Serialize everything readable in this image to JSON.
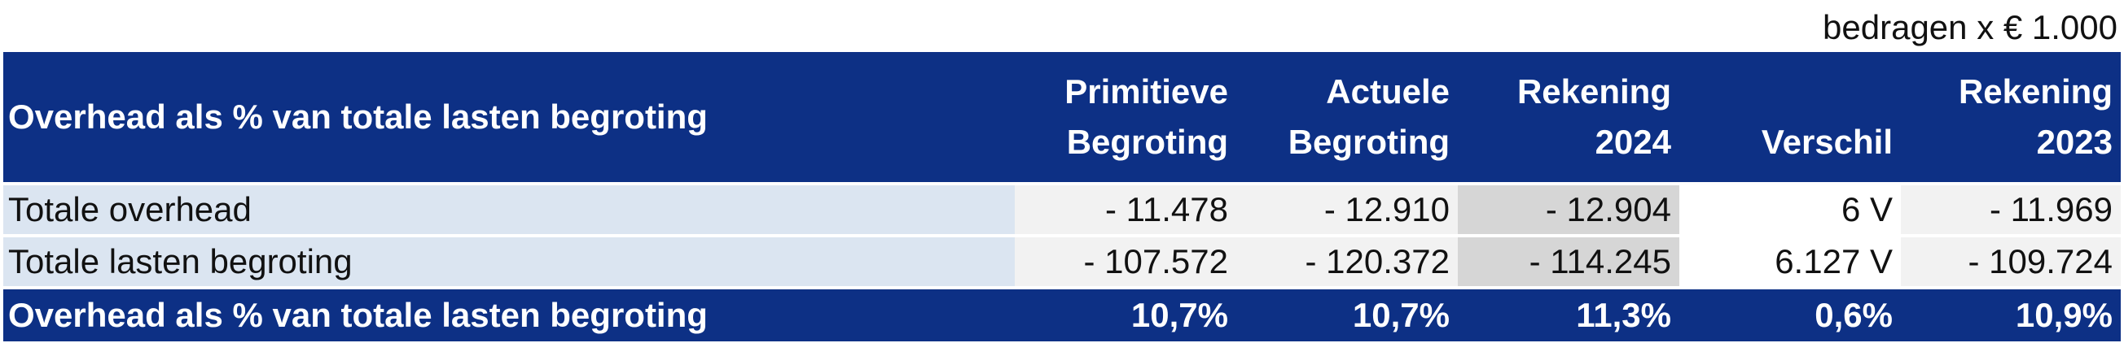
{
  "unit_note": "bedragen x € 1.000",
  "header": {
    "title": "Overhead als % van totale lasten begroting",
    "columns": [
      {
        "line1": "Primitieve",
        "line2": "Begroting"
      },
      {
        "line1": "Actuele",
        "line2": "Begroting"
      },
      {
        "line1": "Rekening",
        "line2": "2024"
      },
      {
        "line1": "",
        "line2": "Verschil"
      },
      {
        "line1": "Rekening",
        "line2": "2023"
      }
    ]
  },
  "rows": [
    {
      "label": "Totale overhead",
      "values": [
        "- 11.478",
        "- 12.910",
        "- 12.904",
        "6 V",
        "- 11.969"
      ]
    },
    {
      "label": "Totale lasten begroting",
      "values": [
        "- 107.572",
        "- 120.372",
        "- 114.245",
        "6.127 V",
        "- 109.724"
      ]
    }
  ],
  "total": {
    "label": "Overhead als % van totale lasten begroting",
    "values": [
      "10,7%",
      "10,7%",
      "11,3%",
      "0,6%",
      "10,9%"
    ]
  }
}
